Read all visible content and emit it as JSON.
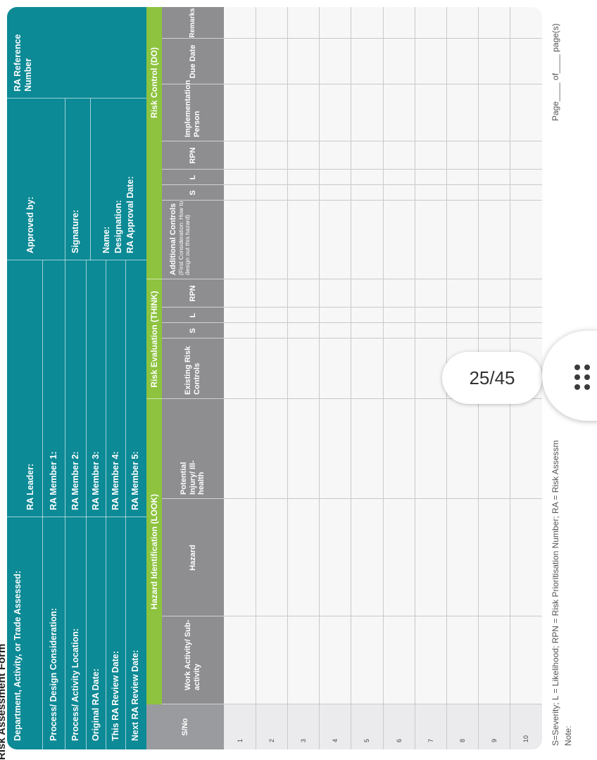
{
  "document": {
    "title": "Risk Assessment Form",
    "header_fields": {
      "department": "Department, Activity, or Trade Assessed:",
      "process_design": "Process/ Design Consideration:",
      "process_location": "Process/ Activity Location:",
      "original_ra_date": "Original RA Date:",
      "this_review_date": "This RA Review Date:",
      "next_review_date": "Next RA Review Date:",
      "ra_leader": "RA Leader:",
      "member1": "RA Member 1:",
      "member2": "RA Member 2:",
      "member3": "RA Member 3:",
      "member4": "RA Member 4:",
      "member5": "RA Member 5:",
      "approved_by": "Approved by:",
      "signature": "Signature:",
      "name": "Name:",
      "designation": "Designation:",
      "approval_date": "RA Approval Date:",
      "reference": "RA Reference Number"
    },
    "bands": {
      "look": "Hazard Identification (LOOK)",
      "think": "Risk Evaluation (THINK)",
      "do": "Risk Control (DO)"
    },
    "columns": {
      "sno": "S/No",
      "work": "Work Activity/ Sub-activity",
      "hazard": "Hazard",
      "injury": "Potential Injury/ Ill-health",
      "existing": "Existing Risk Controls",
      "s": "S",
      "l": "L",
      "rpn": "RPN",
      "additional": "Additional Controls",
      "additional_sub": "(First Consideration: How to design out this hazard)",
      "impl": "Implementation Person",
      "due": "Due Date",
      "remarks": "Remarks"
    },
    "row_numbers": [
      "1",
      "2",
      "3",
      "4",
      "5",
      "6",
      "7",
      "8",
      "9",
      "10"
    ],
    "footnote_legend": "S=Severity; L = Likelihood; RPN = Risk Prioritisation Number; RA = Risk Assessm",
    "note_label": "Note:",
    "page_text": "Page____ of____ page(s)"
  },
  "viewer": {
    "page_indicator": "25/45",
    "menu_icon": "grid-dots-icon"
  },
  "colors": {
    "teal": "#0c8a96",
    "green": "#8dc33f",
    "grey": "#8e8e91"
  }
}
